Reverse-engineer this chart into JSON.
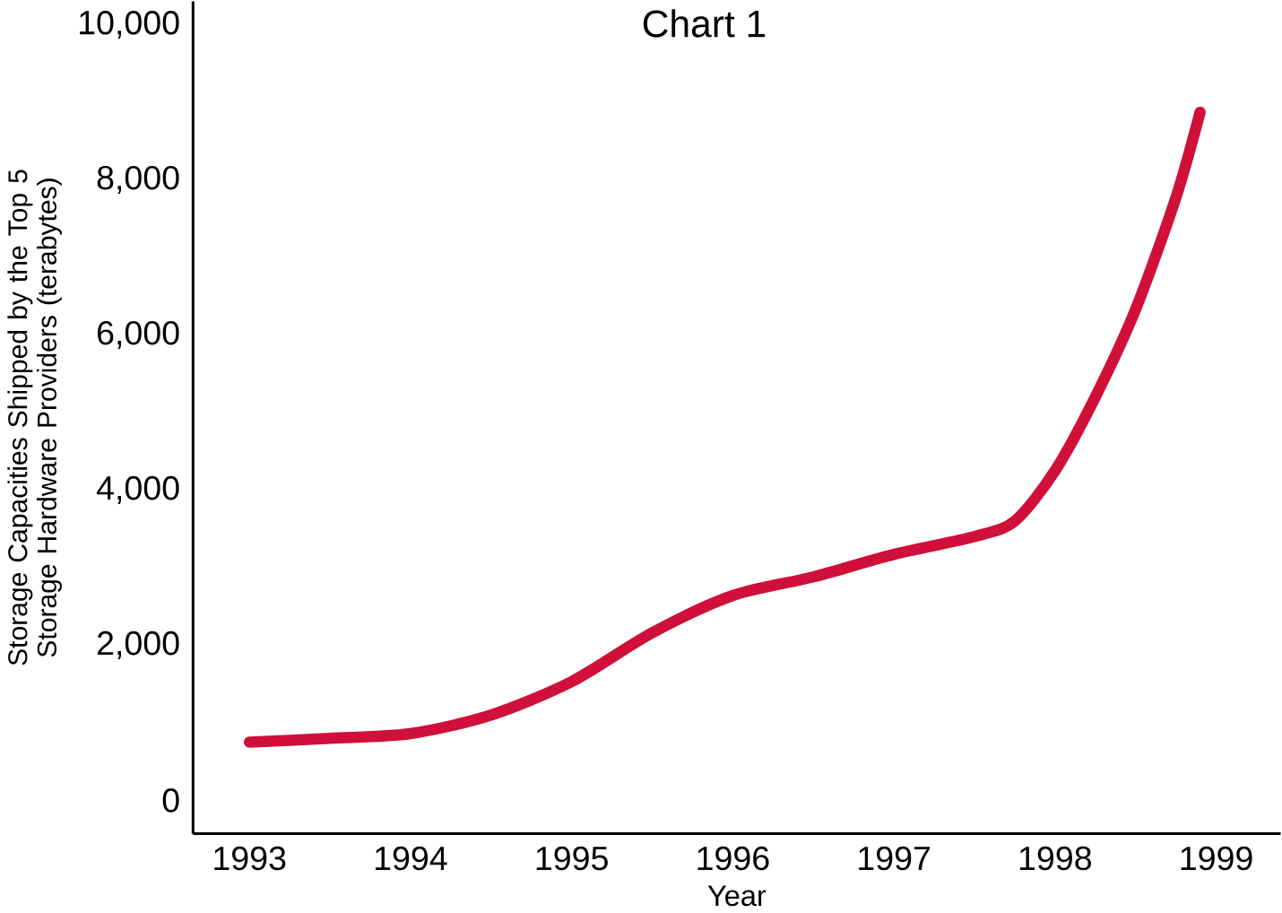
{
  "chart_data": {
    "type": "line",
    "title": "Chart 1",
    "xlabel": "Year",
    "ylabel": "Storage Capacities Shipped by the Top 5 Storage Hardware Providers (terabytes)",
    "xlim": [
      1992.65,
      1999.4
    ],
    "ylim": [
      -430,
      10300
    ],
    "xticks": [
      1993,
      1994,
      1995,
      1996,
      1997,
      1998,
      1999
    ],
    "yticks": [
      {
        "value": 0,
        "label": "0"
      },
      {
        "value": 2000,
        "label": "2,000"
      },
      {
        "value": 4000,
        "label": "4,000"
      },
      {
        "value": 6000,
        "label": "6,000"
      },
      {
        "value": 8000,
        "label": "8,000"
      },
      {
        "value": 10000,
        "label": "10,000"
      }
    ],
    "grid": false,
    "marker": "none",
    "line_style": "solid",
    "series": [
      {
        "color": "#d0103a",
        "x": [
          1993,
          1993.5,
          1994,
          1994.5,
          1995,
          1995.5,
          1996,
          1996.5,
          1997,
          1997.5,
          1997.75,
          1998,
          1998.25,
          1998.5,
          1998.75,
          1998.9
        ],
        "values": [
          750,
          800,
          860,
          1100,
          1530,
          2160,
          2640,
          2880,
          3170,
          3400,
          3600,
          4250,
          5200,
          6330,
          7770,
          8870
        ]
      }
    ]
  }
}
